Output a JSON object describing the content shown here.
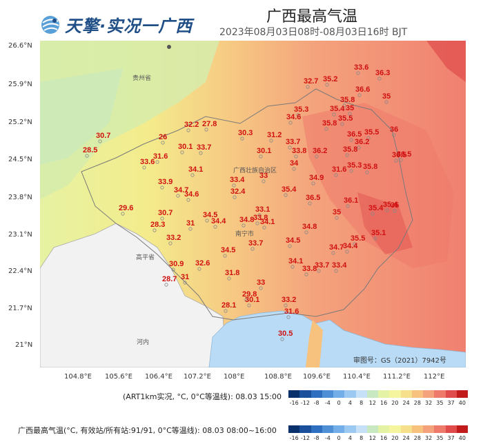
{
  "header": {
    "logo_text": "天擎·实况一广西",
    "title": "广西最高气温",
    "subtitle": "2023年08月03日08时-08月03日16时 BJT"
  },
  "map": {
    "lat_labels": [
      "26.6°N",
      "25.9°N",
      "25.2°N",
      "24.5°N",
      "23.8°N",
      "23.1°N",
      "22.4°N",
      "21.7°N",
      "21°N"
    ],
    "lon_labels": [
      "104.8°E",
      "105.6°E",
      "106.4°E",
      "107.2°E",
      "108°E",
      "108.8°E",
      "109.6°E",
      "110.4°E",
      "111.2°E",
      "112°E"
    ],
    "place_labels": {
      "guizhou": "贵州省",
      "guangxi": "广西壮族自治区",
      "nanning": "南宁市",
      "gaoping": "高平省",
      "henei": "河内"
    },
    "copyright": "审图号：GS（2021）7942号",
    "station_values": [
      "33.6",
      "36.3",
      "32.7",
      "35.2",
      "36.6",
      "35",
      "35.8",
      "35.3",
      "35.4",
      "35",
      "34.6",
      "35.5",
      "35.8",
      "36",
      "30.7",
      "32.2",
      "27.8",
      "30.3",
      "31.2",
      "36.5",
      "35.5",
      "28.5",
      "26",
      "31.6",
      "33.7",
      "36.2",
      "36.5",
      "30.1",
      "33.7",
      "30.1",
      "33.8",
      "36.2",
      "35.8",
      "36.5",
      "31.6",
      "33.6",
      "34",
      "35.3",
      "35.8",
      "34.1",
      "33",
      "34.9",
      "33.9",
      "33.4",
      "35.4",
      "34.7",
      "34.6",
      "32.4",
      "36.5",
      "29.6",
      "36.1",
      "30.7",
      "35.4",
      "35.4",
      "33.1",
      "35",
      "28.3",
      "34.5",
      "31",
      "34.4",
      "34.8",
      "33.8",
      "35",
      "34.8",
      "35.1",
      "33.2",
      "34.1",
      "33.7",
      "34.5",
      "35.5",
      "34.5",
      "34.7",
      "34.4",
      "30.9",
      "32.6",
      "34.1",
      "33.7",
      "33.4",
      "28.7",
      "31",
      "31.8",
      "33.8",
      "33",
      "29.8",
      "30.1",
      "33.2",
      "28.1",
      "31.6",
      "30.5"
    ]
  },
  "legend1": {
    "label": "(ART1km实况, °C, 0°C等温线): 08.03 15:00",
    "ticks": [
      "-16",
      "-12",
      "-8",
      "-4",
      "0",
      "4",
      "8",
      "12",
      "16",
      "20",
      "24",
      "28",
      "32",
      "35",
      "37",
      "40"
    ],
    "colors": [
      "#08306b",
      "#1a4f9c",
      "#2f6fc0",
      "#4f8fd6",
      "#74aee8",
      "#9cc9f2",
      "#c6e0f7",
      "#c7e8c0",
      "#e3f2a4",
      "#f5f5a0",
      "#f7e08c",
      "#f6c27e",
      "#f4a27c",
      "#ee7a6c",
      "#e04c4c",
      "#c11b1b"
    ]
  },
  "legend2": {
    "label": "广西最高气温(°C, 有效站/所有站:91/91, 0°C等温线): 08.03 08:00~16:00",
    "ticks": [
      "-16",
      "-12",
      "-8",
      "-4",
      "0",
      "4",
      "8",
      "12",
      "16",
      "20",
      "24",
      "28",
      "32",
      "35",
      "37",
      "40"
    ],
    "colors": [
      "#08306b",
      "#1a4f9c",
      "#2f6fc0",
      "#4f8fd6",
      "#74aee8",
      "#9cc9f2",
      "#c6e0f7",
      "#c7e8c0",
      "#e3f2a4",
      "#f5f5a0",
      "#f7e08c",
      "#f6c27e",
      "#f4a27c",
      "#ee7a6c",
      "#e04c4c",
      "#c11b1b"
    ]
  }
}
